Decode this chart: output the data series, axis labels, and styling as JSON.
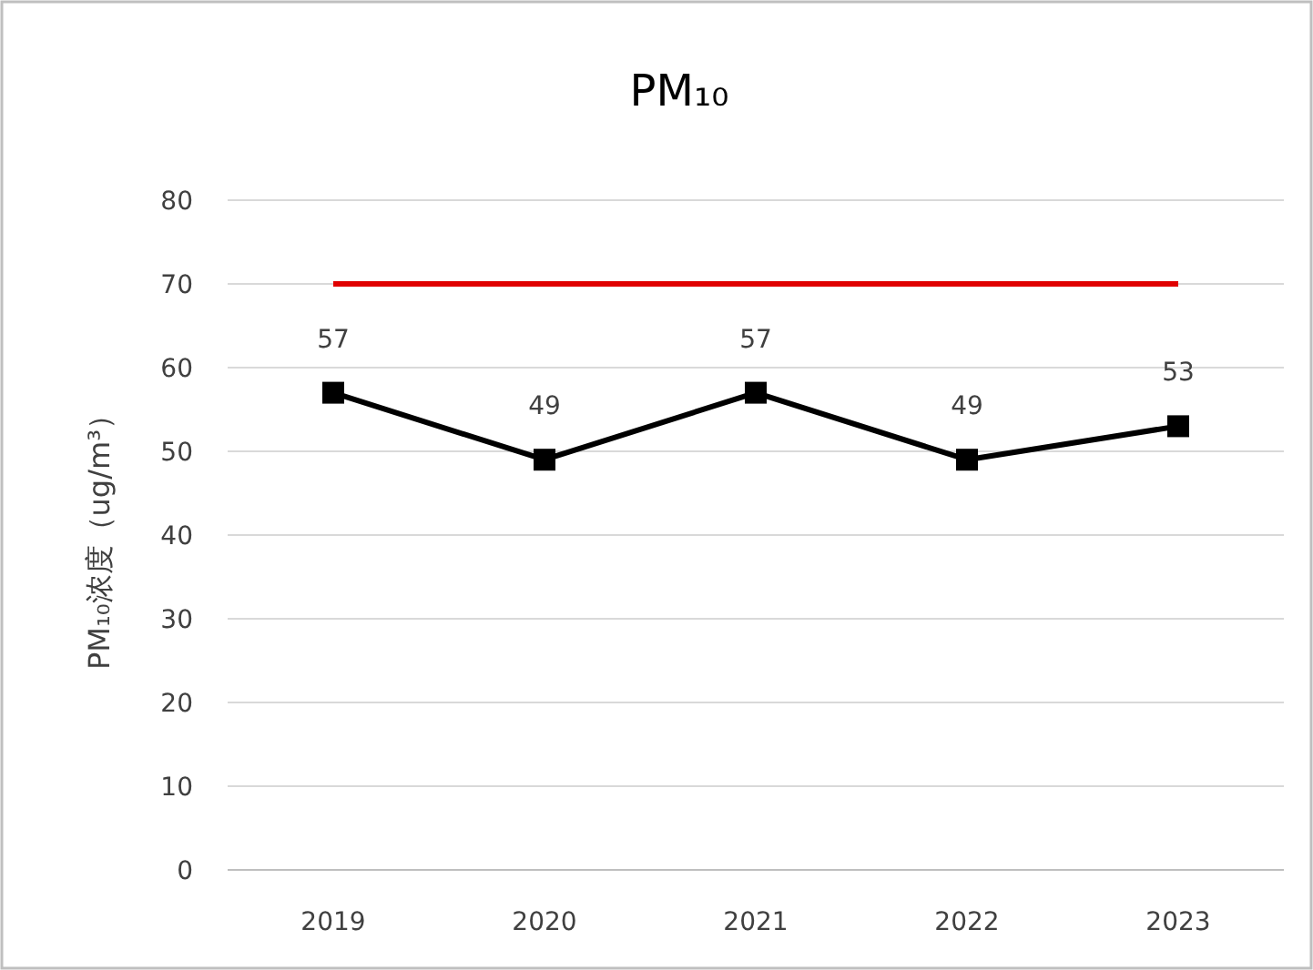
{
  "chart_data": {
    "type": "line",
    "title": "PM₁₀",
    "ylabel": "PM₁₀浓度（ug/m³）",
    "categories": [
      "2019",
      "2020",
      "2021",
      "2022",
      "2023"
    ],
    "series": [
      {
        "color": "#000000",
        "values": [
          57,
          49,
          57,
          49,
          53
        ]
      }
    ],
    "marker": "square",
    "line_style": "solid",
    "ylim": [
      0,
      80
    ],
    "yticks": [
      0,
      10,
      20,
      30,
      40,
      50,
      60,
      70,
      80
    ],
    "grid": "y",
    "data_labels": true,
    "ref_lines": [
      {
        "axis": "y",
        "value": 70,
        "color": "#e00000"
      }
    ]
  }
}
